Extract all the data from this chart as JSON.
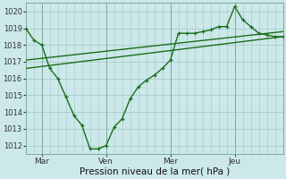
{
  "title": "",
  "xlabel": "Pression niveau de la mer( hPa )",
  "ylabel": "",
  "bg_color": "#cce8ea",
  "grid_color": "#aacccc",
  "line_color": "#1a6e1a",
  "ylim": [
    1011.5,
    1020.5
  ],
  "xlim": [
    0,
    96
  ],
  "yticks": [
    1012,
    1013,
    1014,
    1015,
    1016,
    1017,
    1018,
    1019,
    1020
  ],
  "xtick_positions": [
    6,
    30,
    54,
    78
  ],
  "xtick_labels": [
    "Mar",
    "Ven",
    "Mer",
    "Jeu"
  ],
  "vline_positions": [
    6,
    30,
    54,
    78
  ],
  "series1_x": [
    0,
    3,
    6,
    9,
    12,
    15,
    18,
    21,
    24,
    27,
    30,
    33,
    36,
    39,
    42,
    45,
    48,
    51,
    54,
    57,
    60,
    63,
    66,
    69,
    72,
    75,
    78,
    81,
    84,
    87,
    90,
    93,
    96
  ],
  "series1_y": [
    1019.0,
    1018.3,
    1018.0,
    1016.6,
    1016.0,
    1014.9,
    1013.8,
    1013.2,
    1011.8,
    1011.8,
    1012.0,
    1013.1,
    1013.6,
    1014.8,
    1015.5,
    1015.9,
    1016.2,
    1016.6,
    1017.1,
    1018.7,
    1018.7,
    1018.7,
    1018.8,
    1018.9,
    1019.1,
    1019.1,
    1020.3,
    1019.5,
    1019.1,
    1018.7,
    1018.6,
    1018.5,
    1018.5
  ],
  "trend1_x": [
    0,
    96
  ],
  "trend1_y": [
    1016.6,
    1018.5
  ],
  "trend2_x": [
    0,
    96
  ],
  "trend2_y": [
    1017.1,
    1018.8
  ]
}
